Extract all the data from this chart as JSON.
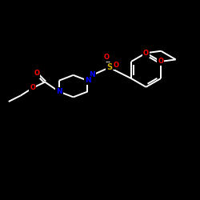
{
  "background_color": "#000000",
  "bond_color": "#ffffff",
  "atom_colors": {
    "N": "#0000ff",
    "S": "#ccaa00",
    "O": "#ff0000",
    "C": "#ffffff"
  },
  "figsize": [
    2.5,
    2.5
  ],
  "dpi": 100,
  "xlim": [
    0,
    10
  ],
  "ylim": [
    0,
    10
  ]
}
